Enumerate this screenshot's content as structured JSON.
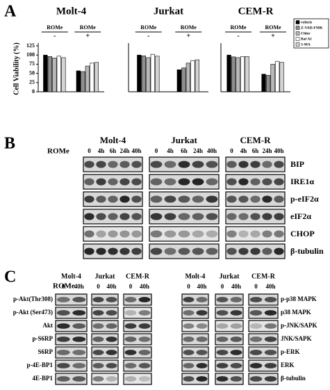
{
  "panel_labels": [
    "A",
    "B",
    "C"
  ],
  "legend": [
    {
      "name": "vehicle",
      "color": "#000000"
    },
    {
      "name": "Z-VAD-FMK",
      "color": "#8f8f8f"
    },
    {
      "name": "Chlor",
      "color": "#b8b8b8"
    },
    {
      "name": "Baf A1",
      "color": "#ffffff"
    },
    {
      "name": "3-MA",
      "color": "#d4d4d4"
    }
  ],
  "chart_data": [
    {
      "type": "bar",
      "title": "Molt-4",
      "y_label": "Cell Viability (%)",
      "group_title": "ROMe",
      "categories": [
        "-",
        "+"
      ],
      "ylim": [
        0,
        125
      ],
      "yticks": [
        0,
        25,
        50,
        75,
        100,
        125
      ],
      "series": [
        {
          "values": [
            100,
            57
          ]
        },
        {
          "values": [
            96,
            55
          ]
        },
        {
          "values": [
            92,
            70
          ]
        },
        {
          "values": [
            97,
            78
          ]
        },
        {
          "values": [
            93,
            80
          ]
        }
      ]
    },
    {
      "type": "bar",
      "title": "Jurkat",
      "group_title": "ROMe",
      "categories": [
        "-",
        "+"
      ],
      "ylim": [
        0,
        125
      ],
      "series": [
        {
          "values": [
            100,
            60
          ]
        },
        {
          "values": [
            98,
            65
          ]
        },
        {
          "values": [
            93,
            78
          ]
        },
        {
          "values": [
            102,
            85
          ]
        },
        {
          "values": [
            97,
            87
          ]
        }
      ]
    },
    {
      "type": "bar",
      "title": "CEM-R",
      "group_title": "ROMe",
      "categories": [
        "-",
        "+"
      ],
      "ylim": [
        0,
        125
      ],
      "series": [
        {
          "values": [
            100,
            48
          ]
        },
        {
          "values": [
            95,
            45
          ]
        },
        {
          "values": [
            93,
            75
          ]
        },
        {
          "values": [
            96,
            83
          ]
        },
        {
          "values": [
            96,
            80
          ]
        }
      ]
    }
  ],
  "blot_b": {
    "group_title": "ROMe",
    "cell_lines": [
      "Molt-4",
      "Jurkat",
      "CEM-R"
    ],
    "lanes": [
      "0",
      "4h",
      "6h",
      "24h",
      "40h"
    ],
    "proteins": [
      "BIP",
      "IRE1α",
      "p-eIF2α",
      "eIF2α",
      "CHOP",
      "β-tubulin"
    ]
  },
  "blot_c": {
    "group_title": "ROMe",
    "cell_lines": [
      "Molt-4",
      "Jurkat",
      "CEM-R"
    ],
    "lanes": [
      "0",
      "40h"
    ],
    "left_proteins": [
      "p-Akt(Thr308)",
      "p-Akt (Ser473)",
      "Akt",
      "p-S6RP",
      "S6RP",
      "p-4E-BP1",
      "4E-BP1"
    ],
    "right_proteins": [
      "p-p38 MAPK",
      "p38 MAPK",
      "p-JNK/SAPK",
      "JNK/SAPK",
      "p-ERK",
      "ERK",
      "β-tubulin"
    ]
  }
}
